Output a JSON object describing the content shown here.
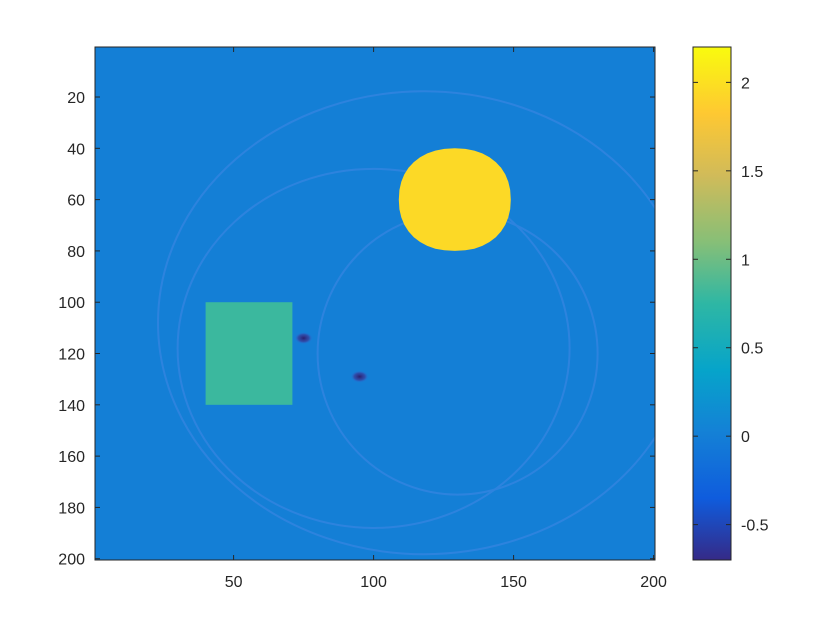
{
  "chart_data": {
    "type": "heatmap",
    "title": "",
    "xlabel": "",
    "ylabel": "",
    "xlim": [
      1,
      200
    ],
    "ylim": [
      1,
      200
    ],
    "y_reversed": true,
    "xticks": [
      50,
      100,
      150,
      200
    ],
    "yticks": [
      20,
      40,
      60,
      80,
      100,
      120,
      140,
      160,
      180,
      200
    ],
    "colormap": "parula",
    "colorbar": {
      "range": [
        -0.7,
        2.2
      ],
      "ticks": [
        -0.5,
        0,
        0.5,
        1,
        1.5,
        2
      ],
      "tick_labels": [
        "-0.5",
        "0",
        "0.5",
        "1",
        "1.5",
        "2"
      ]
    },
    "background_value": 0.0,
    "features": [
      {
        "name": "disk",
        "center_x": 129,
        "center_y": 60,
        "radius": 20,
        "value": 1.95
      },
      {
        "name": "square",
        "x_range": [
          40,
          71
        ],
        "y_range": [
          100,
          140
        ],
        "value": 0.8
      },
      {
        "name": "dark-spot",
        "x": 75,
        "y": 114,
        "value": -0.6
      },
      {
        "name": "dark-spot",
        "x": 95,
        "y": 129,
        "value": -0.6
      }
    ]
  }
}
